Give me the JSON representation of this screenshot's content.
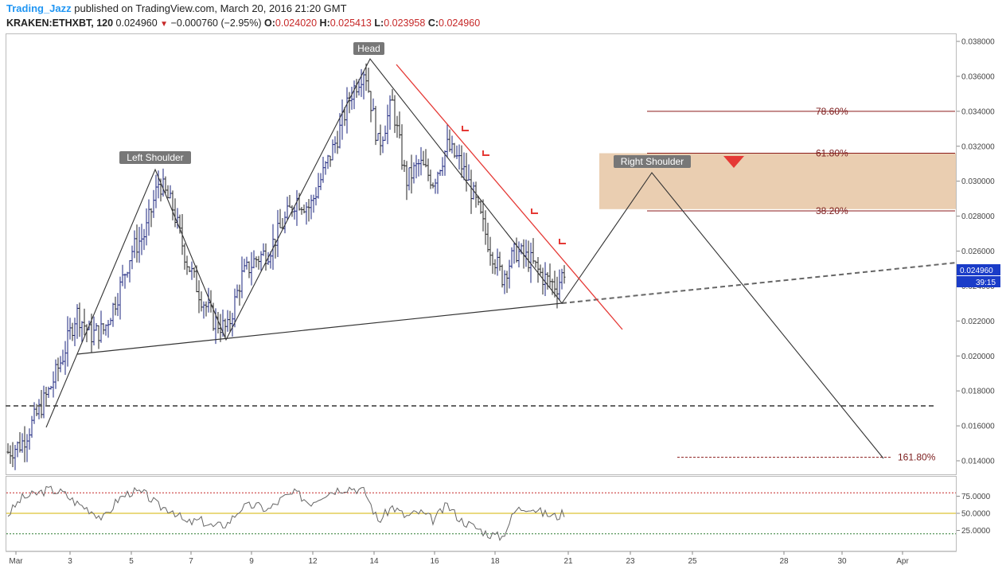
{
  "header": {
    "author": "Trading_Jazz",
    "published": "published on TradingView.com, March 20, 2016 21:20 GMT",
    "symbol": "KRAKEN:ETHXBT, 120",
    "last": "0.024960",
    "change": "−0.000760 (−2.95%)",
    "o_label": "O:",
    "o": "0.024020",
    "h_label": "H:",
    "h": "0.025413",
    "l_label": "L:",
    "l": "0.023958",
    "c_label": "C:",
    "c": "0.024960"
  },
  "colors": {
    "price_up": "#1a237e",
    "price_down": "#222222",
    "fib_line": "#8b1a1a",
    "resistance": "#e53935",
    "zone": "#e8c9a8",
    "rsi_line": "#666666",
    "rsi_mid": "#d4b400",
    "rsi_over": "#c62828",
    "rsi_under": "#2e7d32",
    "price_tag": "#1a3cc8"
  },
  "chart_data": [
    {
      "type": "line",
      "title": "KRAKEN:ETHXBT, 120",
      "xlabel": "",
      "ylabel": "",
      "x_ticks": [
        "Mar",
        "3",
        "5",
        "7",
        "9",
        "12",
        "14",
        "16",
        "18",
        "21",
        "23",
        "25",
        "28",
        "30",
        "Apr"
      ],
      "y_ticks": [
        "0.014000",
        "0.016000",
        "0.018000",
        "0.020000",
        "0.022000",
        "0.024000",
        "0.026000",
        "0.028000",
        "0.030000",
        "0.032000",
        "0.034000",
        "0.036000",
        "0.038000"
      ],
      "ylim": [
        0.0135,
        0.0385
      ],
      "series": [
        {
          "x": [
            0.0,
            0.5,
            1.0,
            1.5,
            2.0,
            2.5,
            3.0,
            3.5,
            4.0,
            4.5,
            5.0,
            5.5,
            6.0,
            6.5,
            7.0,
            7.5,
            8.0,
            8.5,
            9.0,
            9.5,
            10.0,
            10.5,
            11.0,
            11.5,
            12.0,
            12.5,
            13.0,
            13.5,
            14.0,
            14.5,
            15.0,
            15.5,
            16.0,
            16.5,
            17.0,
            17.5,
            18.0,
            18.5,
            19.0,
            19.5,
            20.0,
            20.3
          ],
          "values": [
            0.0145,
            0.015,
            0.0165,
            0.018,
            0.02,
            0.0225,
            0.0212,
            0.0215,
            0.0235,
            0.026,
            0.027,
            0.03,
            0.0285,
            0.0255,
            0.0235,
            0.022,
            0.0215,
            0.0245,
            0.0255,
            0.026,
            0.0275,
            0.029,
            0.0285,
            0.0305,
            0.0325,
            0.035,
            0.0365,
            0.032,
            0.0345,
            0.03,
            0.031,
            0.03,
            0.032,
            0.031,
            0.029,
            0.0265,
            0.0245,
            0.026,
            0.0255,
            0.0245,
            0.024,
            0.025
          ]
        }
      ],
      "current_price": "0.024960",
      "countdown": "39:15",
      "pattern_labels": [
        "Left Shoulder",
        "Head",
        "Right Shoulder"
      ],
      "fib_levels": [
        {
          "label": "78.60%",
          "value": 0.034
        },
        {
          "label": "61.80%",
          "value": 0.0316
        },
        {
          "label": "38.20%",
          "value": 0.0283
        },
        {
          "label": "161.80%",
          "value": 0.0142
        }
      ],
      "zone": [
        0.0284,
        0.0316
      ],
      "support_level": 0.0172,
      "legend": "none",
      "grid": false
    },
    {
      "type": "line",
      "title": "",
      "y_ticks": [
        "25.0000",
        "50.0000",
        "75.0000"
      ],
      "ylim": [
        0,
        100
      ],
      "levels": {
        "upper": 80,
        "middle": 50,
        "lower": 20
      },
      "series": [
        {
          "x": [
            0.0,
            0.5,
            1.0,
            1.5,
            2.0,
            2.5,
            3.0,
            3.5,
            4.0,
            4.5,
            5.0,
            5.5,
            6.0,
            6.5,
            7.0,
            7.5,
            8.0,
            8.5,
            9.0,
            9.5,
            10.0,
            10.5,
            11.0,
            11.5,
            12.0,
            12.5,
            13.0,
            13.5,
            14.0,
            14.5,
            15.0,
            15.5,
            16.0,
            16.5,
            17.0,
            17.5,
            18.0,
            18.5,
            19.0,
            19.5,
            20.0,
            20.3
          ],
          "values": [
            48,
            72,
            78,
            85,
            80,
            65,
            55,
            42,
            70,
            82,
            78,
            60,
            55,
            35,
            40,
            30,
            35,
            58,
            62,
            55,
            72,
            80,
            65,
            78,
            85,
            88,
            82,
            38,
            60,
            45,
            52,
            40,
            62,
            40,
            30,
            20,
            15,
            55,
            60,
            50,
            45,
            52
          ]
        }
      ],
      "legend": "none",
      "grid": false
    }
  ]
}
